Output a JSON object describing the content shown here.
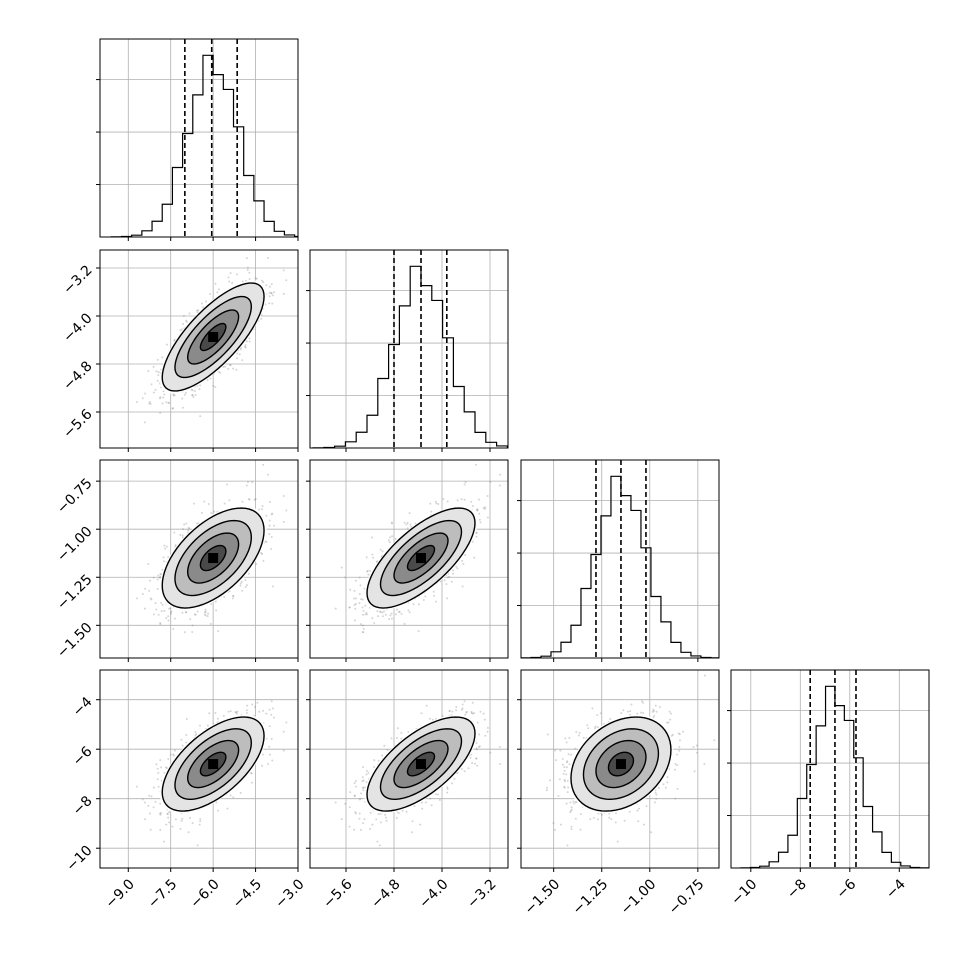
{
  "chart_data": {
    "type": "corner",
    "title": "",
    "grid": true,
    "params": [
      {
        "range": [
          -10.0,
          -3.0
        ],
        "ticks": [
          -9.0,
          -7.5,
          -6.0,
          -4.5,
          -3.0
        ],
        "tick_labels": [
          "−9.0",
          "−7.5",
          "−6.0",
          "−4.5",
          "−3.0"
        ],
        "mean": -6.0,
        "sd": 0.9,
        "quantiles": [
          -7.0,
          -6.05,
          -5.15
        ]
      },
      {
        "range": [
          -6.2,
          -2.9
        ],
        "ticks": [
          -5.6,
          -4.8,
          -4.0,
          -3.2
        ],
        "tick_labels": [
          "−5.6",
          "−4.8",
          "−4.0",
          "−3.2"
        ],
        "mean": -4.35,
        "sd": 0.45,
        "quantiles": [
          -4.8,
          -4.35,
          -3.92
        ]
      },
      {
        "range": [
          -1.67,
          -0.64
        ],
        "ticks": [
          -1.5,
          -1.25,
          -1.0,
          -0.75
        ],
        "tick_labels": [
          "−1.50",
          "−1.25",
          "−1.00",
          "−0.75"
        ],
        "mean": -1.15,
        "sd": 0.13,
        "quantiles": [
          -1.28,
          -1.15,
          -1.02
        ]
      },
      {
        "range": [
          -10.8,
          -2.8
        ],
        "ticks": [
          -10,
          -8,
          -6,
          -4
        ],
        "tick_labels": [
          "−10",
          "−8",
          "−6",
          "−4"
        ],
        "mean": -6.6,
        "sd": 0.95,
        "quantiles": [
          -7.6,
          -6.6,
          -5.75
        ]
      }
    ],
    "correlations": {
      "1-0": 0.75,
      "2-0": 0.55,
      "2-1": 0.7,
      "3-0": 0.6,
      "3-1": 0.65,
      "3-2": 0.3
    },
    "hist_bins": 20,
    "scatter_points": 1200,
    "contour_levels": [
      0.5,
      1.0,
      1.5,
      2.0
    ],
    "colors": {
      "line": "#000000",
      "grid": "#b0b0b0",
      "scatter": "#888888"
    }
  }
}
